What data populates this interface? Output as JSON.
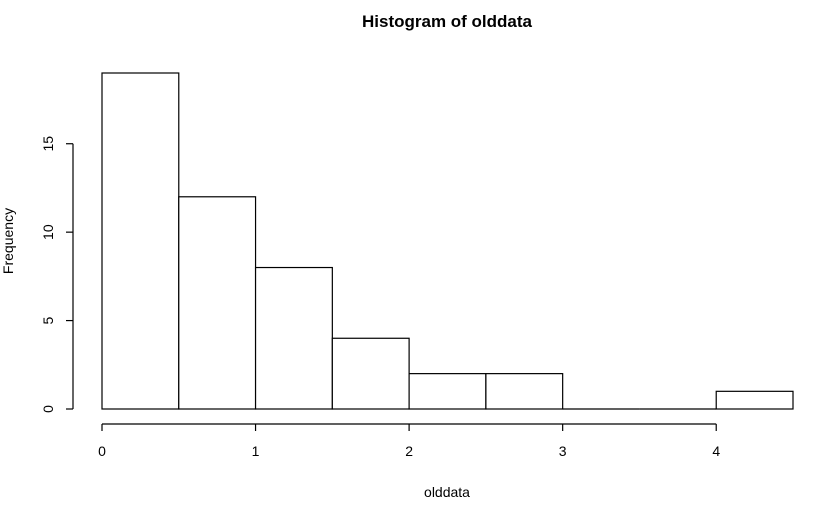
{
  "chart_data": {
    "type": "bar",
    "title": "Histogram of olddata",
    "xlabel": "olddata",
    "ylabel": "Frequency",
    "bins": [
      {
        "start": 0.0,
        "end": 0.5,
        "count": 19
      },
      {
        "start": 0.5,
        "end": 1.0,
        "count": 12
      },
      {
        "start": 1.0,
        "end": 1.5,
        "count": 8
      },
      {
        "start": 1.5,
        "end": 2.0,
        "count": 4
      },
      {
        "start": 2.0,
        "end": 2.5,
        "count": 2
      },
      {
        "start": 2.5,
        "end": 3.0,
        "count": 2
      },
      {
        "start": 3.0,
        "end": 3.5,
        "count": 0
      },
      {
        "start": 3.5,
        "end": 4.0,
        "count": 0
      },
      {
        "start": 4.0,
        "end": 4.5,
        "count": 1
      }
    ],
    "xlim": [
      0,
      4.5
    ],
    "ylim": [
      0,
      19
    ],
    "x_ticks": [
      0,
      1,
      2,
      3,
      4
    ],
    "y_ticks": [
      0,
      5,
      10,
      15
    ],
    "grid": false,
    "bar_fill": "#ffffff",
    "bar_stroke": "#000000"
  }
}
